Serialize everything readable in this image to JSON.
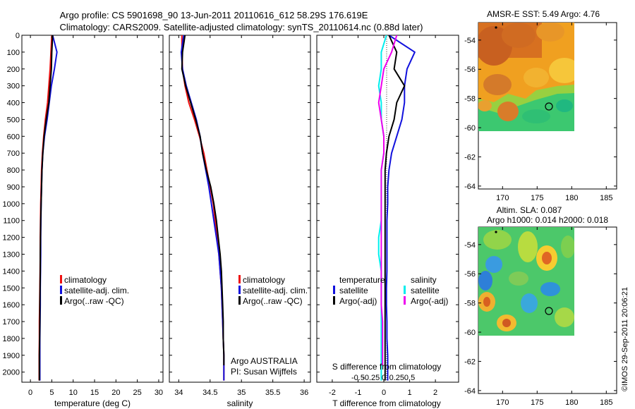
{
  "header": {
    "line1": "Argo profile: CS 5901698_90 13-Jun-2011 20110616_612 58.29S 176.619E",
    "line2": "Climatology: CARS2009. Satellite-adjusted climatology: synTS_20110614.nc (0.88d later)"
  },
  "watermark": "©IMOS 29-Sep-2011 20:06:21",
  "colors": {
    "climatology": "#ee1111",
    "satellite": "#1111dd",
    "argo": "#000000",
    "salinity_satellite": "#00eeee",
    "salinity_argo": "#ee00ee"
  },
  "chart_data": [
    {
      "id": "temperature",
      "type": "line",
      "xlabel": "temperature (deg C)",
      "xlim": [
        -2,
        31
      ],
      "xticks": [
        0,
        5,
        10,
        15,
        20,
        25,
        30
      ],
      "ylim": [
        2060,
        0
      ],
      "yticks": [
        0,
        100,
        200,
        300,
        400,
        500,
        600,
        700,
        800,
        900,
        1000,
        1100,
        1200,
        1300,
        1400,
        1500,
        1600,
        1700,
        1800,
        1900,
        2000
      ],
      "legend": [
        "climatology",
        "satellite-adj. clim.",
        "Argo(..raw -QC)"
      ],
      "series": [
        {
          "name": "climatology",
          "x": [
            5.0,
            4.8,
            4.6,
            4.3,
            4.0,
            3.5,
            3.1,
            2.8,
            2.6,
            2.5,
            2.4,
            2.35,
            2.3,
            2.3,
            2.25,
            2.2,
            2.15,
            2.1,
            2.1,
            2.05,
            2.05
          ],
          "y": [
            0,
            100,
            200,
            300,
            400,
            500,
            600,
            700,
            800,
            900,
            1000,
            1100,
            1200,
            1300,
            1400,
            1500,
            1600,
            1700,
            1800,
            1900,
            2050
          ]
        },
        {
          "name": "satellite-adj. clim.",
          "x": [
            5.2,
            6.2,
            5.6,
            4.9,
            4.4,
            3.9,
            3.3,
            2.9,
            2.7,
            2.6,
            2.5,
            2.45,
            2.4,
            2.4,
            2.35,
            2.3,
            2.3,
            2.25,
            2.2,
            2.2,
            2.2
          ],
          "y": [
            0,
            100,
            200,
            300,
            400,
            500,
            600,
            700,
            800,
            900,
            1000,
            1100,
            1200,
            1300,
            1400,
            1500,
            1600,
            1700,
            1800,
            1900,
            2050
          ]
        },
        {
          "name": "Argo(..raw -QC)",
          "x": [
            5.2,
            5.0,
            4.9,
            4.6,
            4.3,
            3.7,
            3.2,
            2.9,
            2.7,
            2.6,
            2.5,
            2.4,
            2.35,
            2.3,
            2.3,
            2.25,
            2.2,
            2.2,
            2.15,
            2.1,
            2.1
          ],
          "y": [
            0,
            100,
            200,
            300,
            400,
            500,
            600,
            700,
            800,
            900,
            1000,
            1100,
            1200,
            1300,
            1400,
            1500,
            1600,
            1700,
            1800,
            1900,
            2050
          ]
        }
      ]
    },
    {
      "id": "salinity",
      "type": "line",
      "xlabel": "salinity",
      "xlim": [
        33.85,
        36.1
      ],
      "xticks": [
        34,
        34.5,
        35,
        35.5,
        36
      ],
      "xticklabels": [
        "34",
        "34.5",
        "35",
        "35.5",
        "36"
      ],
      "ylim": [
        2060,
        0
      ],
      "legend": [
        "climatology",
        "satellite-adj. clim.",
        "Argo(..raw -QC)"
      ],
      "series": [
        {
          "name": "climatology",
          "x": [
            34.05,
            34.05,
            34.06,
            34.1,
            34.16,
            34.25,
            34.33,
            34.4,
            34.45,
            34.5,
            34.55,
            34.58,
            34.61,
            34.64,
            34.66,
            34.68,
            34.69,
            34.7,
            34.71,
            34.72,
            34.72
          ],
          "y": [
            0,
            100,
            200,
            300,
            400,
            500,
            600,
            700,
            800,
            900,
            1000,
            1100,
            1200,
            1300,
            1400,
            1500,
            1600,
            1700,
            1800,
            1900,
            2050
          ]
        },
        {
          "name": "satellite-adj. clim.",
          "x": [
            34.08,
            34.04,
            34.06,
            34.12,
            34.2,
            34.28,
            34.34,
            34.38,
            34.43,
            34.48,
            34.52,
            34.56,
            34.6,
            34.64,
            34.66,
            34.68,
            34.69,
            34.7,
            34.71,
            34.72,
            34.72
          ],
          "y": [
            0,
            100,
            200,
            300,
            400,
            500,
            600,
            700,
            800,
            900,
            1000,
            1100,
            1200,
            1300,
            1400,
            1500,
            1600,
            1700,
            1800,
            1900,
            2050
          ]
        },
        {
          "name": "Argo(..raw -QC)",
          "x": [
            34.1,
            34.06,
            34.05,
            34.11,
            34.19,
            34.27,
            34.34,
            34.38,
            34.44,
            34.51,
            34.56,
            34.6,
            34.63,
            34.66,
            34.68,
            34.69,
            34.7,
            34.71,
            34.71,
            34.72,
            34.72
          ],
          "y": [
            0,
            100,
            200,
            300,
            400,
            500,
            600,
            700,
            800,
            900,
            1000,
            1100,
            1200,
            1300,
            1400,
            1500,
            1600,
            1700,
            1800,
            1900,
            1960
          ]
        }
      ],
      "annotation": [
        "Argo AUSTRALIA",
        "PI: Susan Wijffels"
      ]
    },
    {
      "id": "difference",
      "type": "line",
      "xlabel": "T difference from climatology",
      "xlabel_top": "S difference from climatology",
      "xlim": [
        -2.6,
        2.9
      ],
      "xticks": [
        -2,
        -1,
        0,
        1,
        2
      ],
      "xticks_salinity": [
        -0.5,
        -0.25,
        0,
        0.25,
        0.5
      ],
      "ylim": [
        2060,
        0
      ],
      "legend_headers": [
        "temperature",
        "salinity"
      ],
      "legend": [
        "satellite",
        "Argo(-adj)",
        "satellite",
        "Argo(-adj)"
      ],
      "series": [
        {
          "name": "temperature satellite",
          "x": [
            0.2,
            1.2,
            0.9,
            0.8,
            0.8,
            0.7,
            0.5,
            0.3,
            0.2,
            0.15,
            0.15,
            0.12,
            0.12,
            0.12,
            0.12,
            0.1,
            0.1,
            0.12,
            0.12,
            0.15,
            0.15
          ],
          "y": [
            0,
            100,
            200,
            300,
            400,
            500,
            600,
            700,
            800,
            900,
            1000,
            1100,
            1200,
            1300,
            1400,
            1500,
            1600,
            1700,
            1800,
            1900,
            2050
          ]
        },
        {
          "name": "temperature Argo(-adj)",
          "x": [
            0.2,
            0.5,
            0.4,
            0.8,
            0.5,
            0.4,
            0.2,
            0.1,
            0.05,
            0.05,
            0.05,
            0.05,
            0.05,
            0.05,
            0.05,
            0.05,
            0.05,
            0.05,
            0.05,
            0.05,
            0.05
          ],
          "y": [
            0,
            100,
            200,
            300,
            400,
            500,
            600,
            700,
            800,
            900,
            1000,
            1100,
            1200,
            1300,
            1400,
            1500,
            1600,
            1700,
            1800,
            1900,
            2050
          ]
        },
        {
          "name": "salinity satellite",
          "x": [
            0.1,
            -0.1,
            -0.1,
            -0.2,
            -0.1,
            -0.1,
            0.0,
            0.0,
            -0.1,
            -0.1,
            -0.1,
            -0.1,
            -0.2,
            -0.2,
            -0.1,
            -0.1,
            -0.1,
            -0.1,
            -0.1,
            -0.1,
            -0.1
          ],
          "y": [
            0,
            100,
            200,
            300,
            400,
            500,
            600,
            700,
            800,
            900,
            1000,
            1100,
            1200,
            1300,
            1400,
            1500,
            1600,
            1700,
            1800,
            1900,
            2050
          ]
        },
        {
          "name": "salinity Argo(-adj)",
          "x": [
            0.5,
            0.3,
            0.0,
            -0.1,
            -0.2,
            -0.1,
            0.0,
            0.0,
            -0.1,
            -0.1,
            -0.1,
            -0.1,
            -0.1,
            -0.1,
            -0.1,
            -0.1,
            -0.1,
            -0.05,
            -0.05,
            -0.05,
            -0.05
          ],
          "y": [
            0,
            100,
            200,
            300,
            400,
            500,
            600,
            700,
            800,
            900,
            1000,
            1100,
            1200,
            1300,
            1400,
            1500,
            1600,
            1700,
            1800,
            1900,
            1960
          ]
        }
      ]
    },
    {
      "id": "sst-map",
      "type": "heatmap",
      "title": "AMSR-E SST: 5.49 Argo: 4.76",
      "xlim": [
        166.5,
        186.5
      ],
      "ylim": [
        -64.2,
        -52.8
      ],
      "xticks": [
        170,
        175,
        180,
        185
      ],
      "yticks": [
        -54,
        -56,
        -58,
        -60,
        -62,
        -64
      ],
      "data_extent": {
        "lon": [
          166.5,
          180
        ],
        "lat": [
          -60,
          -52.8
        ]
      },
      "marker": {
        "lon": 176.619,
        "lat": -58.29
      }
    },
    {
      "id": "sla-map",
      "type": "heatmap",
      "title": [
        "Altim. SLA: 0.087",
        "Argo h1000: 0.014 h2000: 0.018"
      ],
      "xlim": [
        166.5,
        186.5
      ],
      "ylim": [
        -64.2,
        -52.8
      ],
      "xticks": [
        170,
        175,
        180,
        185
      ],
      "yticks": [
        -54,
        -56,
        -58,
        -60,
        -62,
        -64
      ],
      "data_extent": {
        "lon": [
          166.5,
          180
        ],
        "lat": [
          -60,
          -52.8
        ]
      },
      "marker": {
        "lon": 176.619,
        "lat": -58.29
      }
    }
  ]
}
